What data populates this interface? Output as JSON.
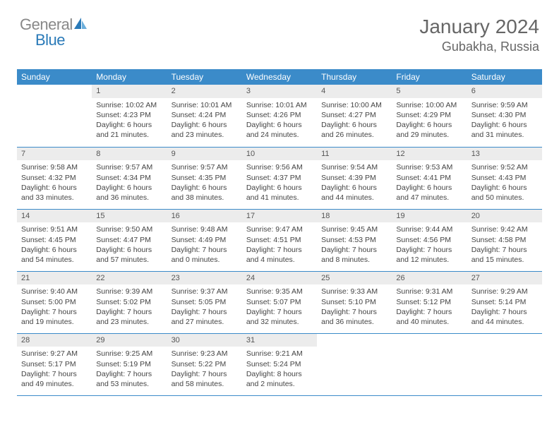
{
  "logo": {
    "text1": "General",
    "text2": "Blue",
    "accent": "#2a7ab8",
    "muted": "#888888"
  },
  "title": {
    "month_year": "January 2024",
    "location": "Gubakha, Russia"
  },
  "header_bg": "#3b8bc9",
  "header_fg": "#ffffff",
  "daynum_bg": "#ececec",
  "border_color": "#3b8bc9",
  "text_color": "#444444",
  "font_size_body": 10.5,
  "weekdays": [
    "Sunday",
    "Monday",
    "Tuesday",
    "Wednesday",
    "Thursday",
    "Friday",
    "Saturday"
  ],
  "weeks": [
    [
      {
        "n": "",
        "lines": []
      },
      {
        "n": "1",
        "lines": [
          "Sunrise: 10:02 AM",
          "Sunset: 4:23 PM",
          "Daylight: 6 hours",
          "and 21 minutes."
        ]
      },
      {
        "n": "2",
        "lines": [
          "Sunrise: 10:01 AM",
          "Sunset: 4:24 PM",
          "Daylight: 6 hours",
          "and 23 minutes."
        ]
      },
      {
        "n": "3",
        "lines": [
          "Sunrise: 10:01 AM",
          "Sunset: 4:26 PM",
          "Daylight: 6 hours",
          "and 24 minutes."
        ]
      },
      {
        "n": "4",
        "lines": [
          "Sunrise: 10:00 AM",
          "Sunset: 4:27 PM",
          "Daylight: 6 hours",
          "and 26 minutes."
        ]
      },
      {
        "n": "5",
        "lines": [
          "Sunrise: 10:00 AM",
          "Sunset: 4:29 PM",
          "Daylight: 6 hours",
          "and 29 minutes."
        ]
      },
      {
        "n": "6",
        "lines": [
          "Sunrise: 9:59 AM",
          "Sunset: 4:30 PM",
          "Daylight: 6 hours",
          "and 31 minutes."
        ]
      }
    ],
    [
      {
        "n": "7",
        "lines": [
          "Sunrise: 9:58 AM",
          "Sunset: 4:32 PM",
          "Daylight: 6 hours",
          "and 33 minutes."
        ]
      },
      {
        "n": "8",
        "lines": [
          "Sunrise: 9:57 AM",
          "Sunset: 4:34 PM",
          "Daylight: 6 hours",
          "and 36 minutes."
        ]
      },
      {
        "n": "9",
        "lines": [
          "Sunrise: 9:57 AM",
          "Sunset: 4:35 PM",
          "Daylight: 6 hours",
          "and 38 minutes."
        ]
      },
      {
        "n": "10",
        "lines": [
          "Sunrise: 9:56 AM",
          "Sunset: 4:37 PM",
          "Daylight: 6 hours",
          "and 41 minutes."
        ]
      },
      {
        "n": "11",
        "lines": [
          "Sunrise: 9:54 AM",
          "Sunset: 4:39 PM",
          "Daylight: 6 hours",
          "and 44 minutes."
        ]
      },
      {
        "n": "12",
        "lines": [
          "Sunrise: 9:53 AM",
          "Sunset: 4:41 PM",
          "Daylight: 6 hours",
          "and 47 minutes."
        ]
      },
      {
        "n": "13",
        "lines": [
          "Sunrise: 9:52 AM",
          "Sunset: 4:43 PM",
          "Daylight: 6 hours",
          "and 50 minutes."
        ]
      }
    ],
    [
      {
        "n": "14",
        "lines": [
          "Sunrise: 9:51 AM",
          "Sunset: 4:45 PM",
          "Daylight: 6 hours",
          "and 54 minutes."
        ]
      },
      {
        "n": "15",
        "lines": [
          "Sunrise: 9:50 AM",
          "Sunset: 4:47 PM",
          "Daylight: 6 hours",
          "and 57 minutes."
        ]
      },
      {
        "n": "16",
        "lines": [
          "Sunrise: 9:48 AM",
          "Sunset: 4:49 PM",
          "Daylight: 7 hours",
          "and 0 minutes."
        ]
      },
      {
        "n": "17",
        "lines": [
          "Sunrise: 9:47 AM",
          "Sunset: 4:51 PM",
          "Daylight: 7 hours",
          "and 4 minutes."
        ]
      },
      {
        "n": "18",
        "lines": [
          "Sunrise: 9:45 AM",
          "Sunset: 4:53 PM",
          "Daylight: 7 hours",
          "and 8 minutes."
        ]
      },
      {
        "n": "19",
        "lines": [
          "Sunrise: 9:44 AM",
          "Sunset: 4:56 PM",
          "Daylight: 7 hours",
          "and 12 minutes."
        ]
      },
      {
        "n": "20",
        "lines": [
          "Sunrise: 9:42 AM",
          "Sunset: 4:58 PM",
          "Daylight: 7 hours",
          "and 15 minutes."
        ]
      }
    ],
    [
      {
        "n": "21",
        "lines": [
          "Sunrise: 9:40 AM",
          "Sunset: 5:00 PM",
          "Daylight: 7 hours",
          "and 19 minutes."
        ]
      },
      {
        "n": "22",
        "lines": [
          "Sunrise: 9:39 AM",
          "Sunset: 5:02 PM",
          "Daylight: 7 hours",
          "and 23 minutes."
        ]
      },
      {
        "n": "23",
        "lines": [
          "Sunrise: 9:37 AM",
          "Sunset: 5:05 PM",
          "Daylight: 7 hours",
          "and 27 minutes."
        ]
      },
      {
        "n": "24",
        "lines": [
          "Sunrise: 9:35 AM",
          "Sunset: 5:07 PM",
          "Daylight: 7 hours",
          "and 32 minutes."
        ]
      },
      {
        "n": "25",
        "lines": [
          "Sunrise: 9:33 AM",
          "Sunset: 5:10 PM",
          "Daylight: 7 hours",
          "and 36 minutes."
        ]
      },
      {
        "n": "26",
        "lines": [
          "Sunrise: 9:31 AM",
          "Sunset: 5:12 PM",
          "Daylight: 7 hours",
          "and 40 minutes."
        ]
      },
      {
        "n": "27",
        "lines": [
          "Sunrise: 9:29 AM",
          "Sunset: 5:14 PM",
          "Daylight: 7 hours",
          "and 44 minutes."
        ]
      }
    ],
    [
      {
        "n": "28",
        "lines": [
          "Sunrise: 9:27 AM",
          "Sunset: 5:17 PM",
          "Daylight: 7 hours",
          "and 49 minutes."
        ]
      },
      {
        "n": "29",
        "lines": [
          "Sunrise: 9:25 AM",
          "Sunset: 5:19 PM",
          "Daylight: 7 hours",
          "and 53 minutes."
        ]
      },
      {
        "n": "30",
        "lines": [
          "Sunrise: 9:23 AM",
          "Sunset: 5:22 PM",
          "Daylight: 7 hours",
          "and 58 minutes."
        ]
      },
      {
        "n": "31",
        "lines": [
          "Sunrise: 9:21 AM",
          "Sunset: 5:24 PM",
          "Daylight: 8 hours",
          "and 2 minutes."
        ]
      },
      {
        "n": "",
        "lines": []
      },
      {
        "n": "",
        "lines": []
      },
      {
        "n": "",
        "lines": []
      }
    ]
  ]
}
